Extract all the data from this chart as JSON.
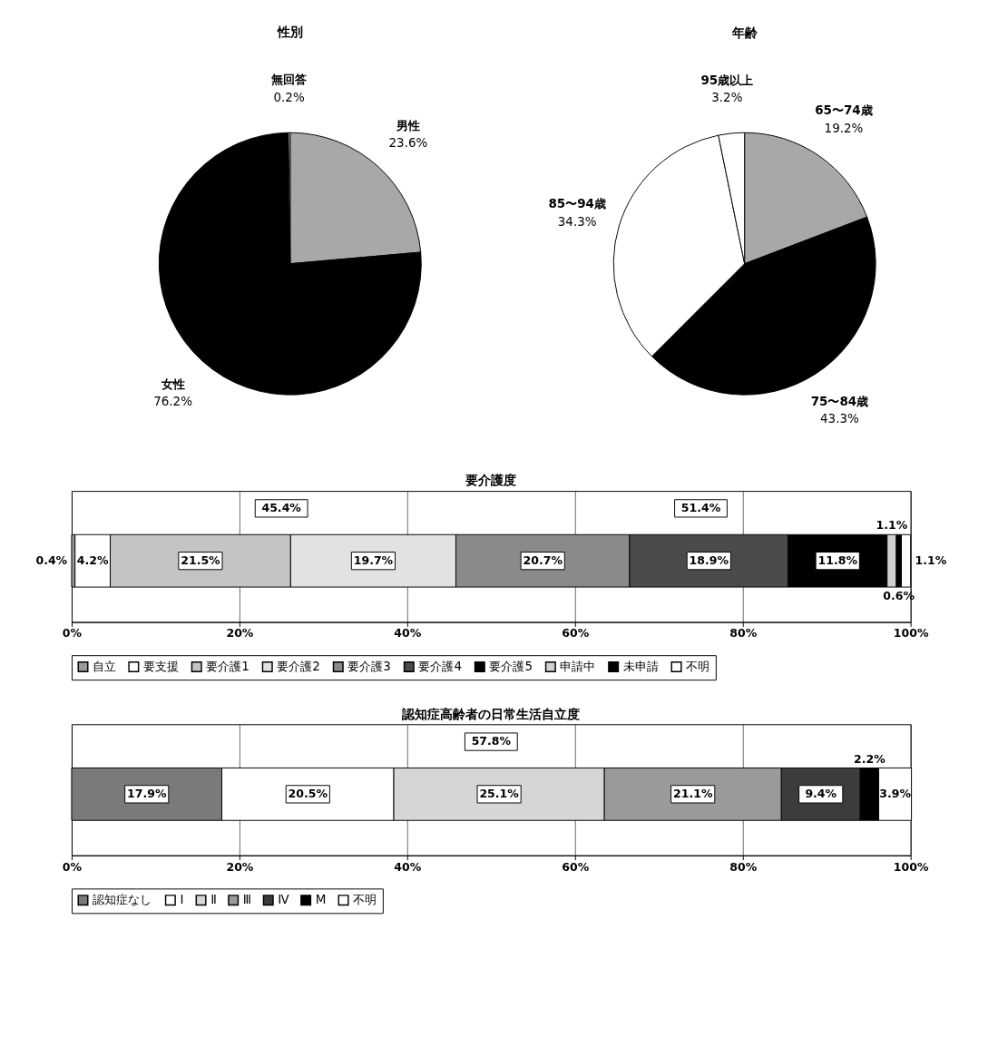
{
  "chart_data": [
    {
      "type": "pie",
      "title": "性別",
      "categories": [
        "男性",
        "女性",
        "無回答"
      ],
      "values": [
        23.6,
        76.2,
        0.2
      ],
      "colors": [
        "#a8a8a8",
        "#000000",
        "#ffffff"
      ],
      "value_labels": [
        "23.6%",
        "76.2%",
        "0.2%"
      ]
    },
    {
      "type": "pie",
      "title": "年齢",
      "categories": [
        "65〜74歳",
        "75〜84歳",
        "85〜94歳",
        "95歳以上"
      ],
      "values": [
        19.2,
        43.3,
        34.3,
        3.2
      ],
      "colors": [
        "#a8a8a8",
        "#000000",
        "#ffffff",
        "#ffffff"
      ],
      "value_labels": [
        "19.2%",
        "43.3%",
        "34.3%",
        "3.2%"
      ]
    },
    {
      "type": "bar",
      "title": "要介護度",
      "orientation": "horizontal",
      "stacked": true,
      "categories": [
        null
      ],
      "series": [
        {
          "name": "自立",
          "color": "#9a9a9a",
          "values": [
            0.4
          ],
          "value_labels": [
            "0.4%"
          ]
        },
        {
          "name": "要支援",
          "color": "#ffffff",
          "values": [
            4.2
          ],
          "value_labels": [
            "4.2%"
          ]
        },
        {
          "name": "要介護1",
          "color": "#c4c4c4",
          "values": [
            21.5
          ],
          "value_labels": [
            "21.5%"
          ]
        },
        {
          "name": "要介護2",
          "color": "#e2e2e2",
          "values": [
            19.7
          ],
          "value_labels": [
            "19.7%"
          ]
        },
        {
          "name": "要介護3",
          "color": "#8a8a8a",
          "values": [
            20.7
          ],
          "value_labels": [
            "20.7%"
          ]
        },
        {
          "name": "要介護4",
          "color": "#4a4a4a",
          "values": [
            18.9
          ],
          "value_labels": [
            "18.9%"
          ]
        },
        {
          "name": "要介護5",
          "color": "#000000",
          "values": [
            11.8
          ],
          "value_labels": [
            "11.8%"
          ]
        },
        {
          "name": "申請中",
          "color": "#d0d0d0",
          "values": [
            1.1
          ],
          "value_labels": [
            "1.1%"
          ]
        },
        {
          "name": "未申請",
          "color": "#000000",
          "values": [
            0.6
          ],
          "value_labels": [
            "0.6%"
          ]
        },
        {
          "name": "不明",
          "color": "#ffffff",
          "values": [
            1.1
          ],
          "value_labels": [
            "1.1%"
          ]
        }
      ],
      "xlim": [
        0,
        100
      ],
      "xticks": [
        {
          "value": 0,
          "label": "0%"
        },
        {
          "value": 20,
          "label": "20%"
        },
        {
          "value": 40,
          "label": "40%"
        },
        {
          "value": 60,
          "label": "60%"
        },
        {
          "value": 80,
          "label": "80%"
        },
        {
          "value": 100,
          "label": "100%"
        }
      ],
      "grid": "x",
      "legend": "bottom",
      "annotations": [
        "45.4%",
        "51.4%"
      ]
    },
    {
      "type": "bar",
      "title": "認知症高齢者の日常生活自立度",
      "orientation": "horizontal",
      "stacked": true,
      "categories": [
        null
      ],
      "series": [
        {
          "name": "認知症なし",
          "color": "#7a7a7a",
          "values": [
            17.9
          ],
          "value_labels": [
            "17.9%"
          ]
        },
        {
          "name": "Ⅰ",
          "color": "#ffffff",
          "values": [
            20.5
          ],
          "value_labels": [
            "20.5%"
          ]
        },
        {
          "name": "Ⅱ",
          "color": "#d6d6d6",
          "values": [
            25.1
          ],
          "value_labels": [
            "25.1%"
          ]
        },
        {
          "name": "Ⅲ",
          "color": "#9a9a9a",
          "values": [
            21.1
          ],
          "value_labels": [
            "21.1%"
          ]
        },
        {
          "name": "Ⅳ",
          "color": "#3c3c3c",
          "values": [
            9.4
          ],
          "value_labels": [
            "9.4%"
          ]
        },
        {
          "name": "M",
          "color": "#000000",
          "values": [
            2.2
          ],
          "value_labels": [
            "2.2%"
          ]
        },
        {
          "name": "不明",
          "color": "#ffffff",
          "values": [
            3.9
          ],
          "value_labels": [
            "3.9%"
          ]
        }
      ],
      "xlim": [
        0,
        100
      ],
      "xticks": [
        {
          "value": 0,
          "label": "0%"
        },
        {
          "value": 20,
          "label": "20%"
        },
        {
          "value": 40,
          "label": "40%"
        },
        {
          "value": 60,
          "label": "60%"
        },
        {
          "value": 80,
          "label": "80%"
        },
        {
          "value": 100,
          "label": "100%"
        }
      ],
      "grid": "x",
      "legend": "bottom",
      "annotations": [
        "57.8%"
      ]
    }
  ]
}
